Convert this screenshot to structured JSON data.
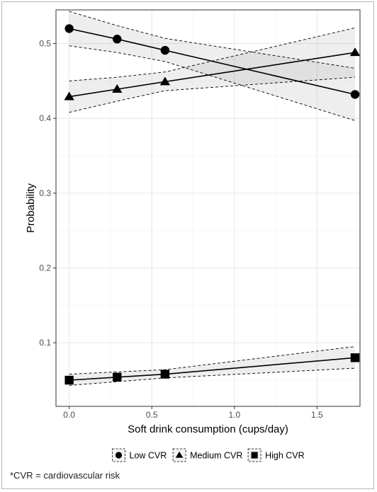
{
  "footnote": "*CVR = cardiovascular risk",
  "chart_data": {
    "type": "line",
    "title": "",
    "xlabel": "Soft drink consumption (cups/day)",
    "ylabel": "Probability",
    "xlim": [
      -0.08,
      1.76
    ],
    "ylim": [
      0.015,
      0.545
    ],
    "x_ticks": [
      0.0,
      0.5,
      1.0,
      1.5
    ],
    "x_tick_labels": [
      "0.0",
      "0.5",
      "1.0",
      "1.5"
    ],
    "y_ticks": [
      0.1,
      0.2,
      0.3,
      0.4,
      0.5
    ],
    "y_tick_labels": [
      "0.1",
      "0.2",
      "0.3",
      "0.4",
      "0.5"
    ],
    "grid": true,
    "legend_position": "bottom",
    "series": [
      {
        "name": "Low CVR",
        "marker": "circle",
        "x": [
          0.0,
          0.29,
          0.58,
          1.73
        ],
        "y": [
          0.52,
          0.506,
          0.491,
          0.432
        ],
        "ci_lower": [
          0.497,
          0.488,
          0.476,
          0.397
        ],
        "ci_upper": [
          0.543,
          0.524,
          0.507,
          0.467
        ]
      },
      {
        "name": "Medium CVR",
        "marker": "triangle",
        "x": [
          0.0,
          0.29,
          0.58,
          1.73
        ],
        "y": [
          0.429,
          0.439,
          0.449,
          0.488
        ],
        "ci_lower": [
          0.408,
          0.423,
          0.437,
          0.455
        ],
        "ci_upper": [
          0.45,
          0.455,
          0.462,
          0.521
        ]
      },
      {
        "name": "High CVR",
        "marker": "square",
        "x": [
          0.0,
          0.29,
          0.58,
          1.73
        ],
        "y": [
          0.05,
          0.054,
          0.058,
          0.08
        ],
        "ci_lower": [
          0.043,
          0.048,
          0.053,
          0.066
        ],
        "ci_upper": [
          0.058,
          0.061,
          0.064,
          0.095
        ]
      }
    ]
  }
}
